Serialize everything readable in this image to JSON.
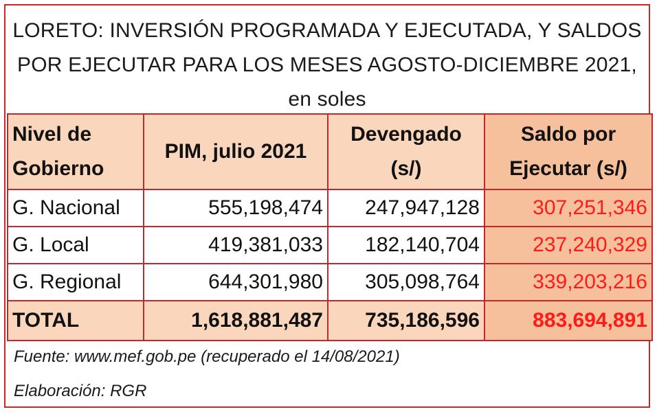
{
  "title": {
    "line1": "LORETO: INVERSIÓN PROGRAMADA Y EJECUTADA, Y SALDOS",
    "line2": "POR EJECUTAR PARA LOS MESES AGOSTO-DICIEMBRE 2021,",
    "line3": "en soles"
  },
  "table": {
    "headers": {
      "nivel_line1": "Nivel de",
      "nivel_line2": "Gobierno",
      "pim": "PIM, julio 2021",
      "devengado_line1": "Devengado",
      "devengado_line2": "(s/)",
      "saldo_line1": "Saldo por",
      "saldo_line2": "Ejecutar (s/)"
    },
    "rows": [
      {
        "nivel": "G. Nacional",
        "pim": "555,198,474",
        "devengado": "247,947,128",
        "saldo": "307,251,346"
      },
      {
        "nivel": "G. Local",
        "pim": "419,381,033",
        "devengado": "182,140,704",
        "saldo": "237,240,329"
      },
      {
        "nivel": "G. Regional",
        "pim": "644,301,980",
        "devengado": "305,098,764",
        "saldo": "339,203,216"
      }
    ],
    "total": {
      "nivel": "TOTAL",
      "pim": "1,618,881,487",
      "devengado": "735,186,596",
      "saldo": "883,694,891"
    }
  },
  "footer": {
    "source": "Fuente: www.mef.gob.pe (recuperado el 14/08/2021)",
    "author": "Elaboración: RGR"
  },
  "colors": {
    "border": "#c0282d",
    "header_bg": "#fad6bc",
    "saldo_bg": "#f7c09c",
    "saldo_text": "#ff1a1a"
  }
}
